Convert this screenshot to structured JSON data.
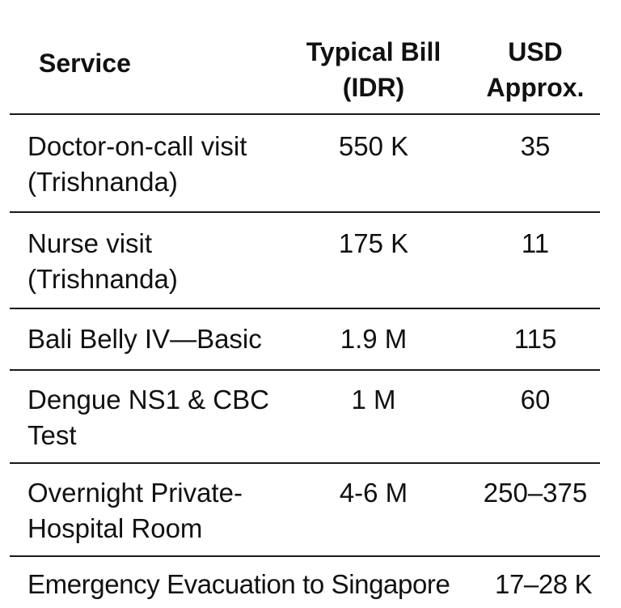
{
  "headers": {
    "service": "Service",
    "bill_line1": "Typical Bill",
    "bill_line2": "(IDR)",
    "usd_line1": "USD",
    "usd_line2": "Approx."
  },
  "rows": [
    {
      "service_line1": "Doctor-on-call visit",
      "service_line2": "(Trishnanda)",
      "idr": "550 K",
      "usd": "35"
    },
    {
      "service_line1": "Nurse visit",
      "service_line2": "(Trishnanda)",
      "idr": "175 K",
      "usd": "11"
    },
    {
      "service_line1": "Bali Belly IV—Basic",
      "service_line2": "",
      "idr": "1.9 M",
      "usd": "115"
    },
    {
      "service_line1": "Dengue NS1 & CBC",
      "service_line2": "Test",
      "idr": "1 M",
      "usd": "60"
    },
    {
      "service_line1": "Overnight Private-",
      "service_line2": "Hospital Room",
      "idr": "4-6 M",
      "usd": "250–375"
    }
  ],
  "last_row": {
    "service": "Emergency Evacuation to Singapore",
    "usd": "17–28 K"
  }
}
